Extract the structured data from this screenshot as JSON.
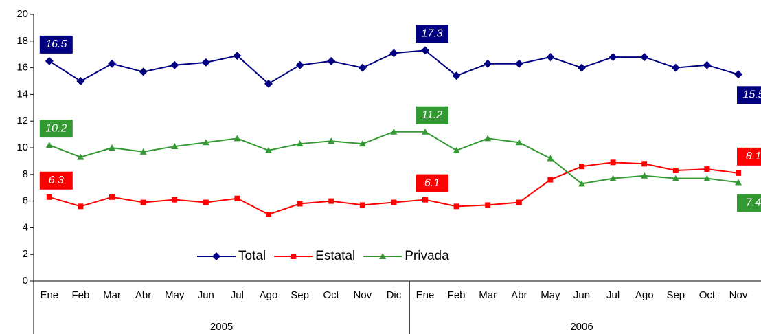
{
  "chart_data": {
    "type": "line",
    "categories": [
      "Ene",
      "Feb",
      "Mar",
      "Abr",
      "May",
      "Jun",
      "Jul",
      "Ago",
      "Sep",
      "Oct",
      "Nov",
      "Dic",
      "Ene",
      "Feb",
      "Mar",
      "Abr",
      "May",
      "Jun",
      "Jul",
      "Ago",
      "Sep",
      "Oct",
      "Nov"
    ],
    "groups": [
      {
        "name": "2005",
        "count": 12
      },
      {
        "name": "2006",
        "count": 11
      }
    ],
    "series": [
      {
        "name": "Total",
        "color": "#000080",
        "marker": "diamond",
        "values": [
          16.5,
          15.0,
          16.3,
          15.7,
          16.2,
          16.4,
          16.9,
          14.8,
          16.2,
          16.5,
          16.0,
          17.1,
          17.3,
          15.4,
          16.3,
          16.3,
          16.8,
          16.0,
          16.8,
          16.8,
          16.0,
          16.2,
          15.5
        ],
        "value_labels": [
          "16.5",
          null,
          null,
          null,
          null,
          null,
          null,
          null,
          null,
          null,
          null,
          null,
          "17.3",
          null,
          null,
          null,
          null,
          null,
          null,
          null,
          null,
          null,
          "15.5"
        ]
      },
      {
        "name": "Estatal",
        "color": "#ff0000",
        "marker": "square",
        "values": [
          6.3,
          5.6,
          6.3,
          5.9,
          6.1,
          5.9,
          6.2,
          5.0,
          5.8,
          6.0,
          5.7,
          5.9,
          6.1,
          5.6,
          5.7,
          5.9,
          7.6,
          8.6,
          8.9,
          8.8,
          8.3,
          8.4,
          8.1
        ],
        "value_labels": [
          "6.3",
          null,
          null,
          null,
          null,
          null,
          null,
          null,
          null,
          null,
          null,
          null,
          "6.1",
          null,
          null,
          null,
          null,
          null,
          null,
          null,
          null,
          null,
          "8.1"
        ]
      },
      {
        "name": "Privada",
        "color": "#339933",
        "marker": "triangle",
        "values": [
          10.2,
          9.3,
          10.0,
          9.7,
          10.1,
          10.4,
          10.7,
          9.8,
          10.3,
          10.5,
          10.3,
          11.2,
          11.2,
          9.8,
          10.7,
          10.4,
          9.2,
          7.3,
          7.7,
          7.9,
          7.7,
          7.7,
          7.4
        ],
        "value_labels": [
          "10.2",
          null,
          null,
          null,
          null,
          null,
          null,
          null,
          null,
          null,
          null,
          null,
          "11.2",
          null,
          null,
          null,
          null,
          null,
          null,
          null,
          null,
          null,
          "7.4"
        ]
      }
    ],
    "ylim": [
      0,
      20
    ],
    "yticks": [
      0,
      2,
      4,
      6,
      8,
      10,
      12,
      14,
      16,
      18,
      20
    ],
    "grid": false,
    "legend": "bottom"
  }
}
